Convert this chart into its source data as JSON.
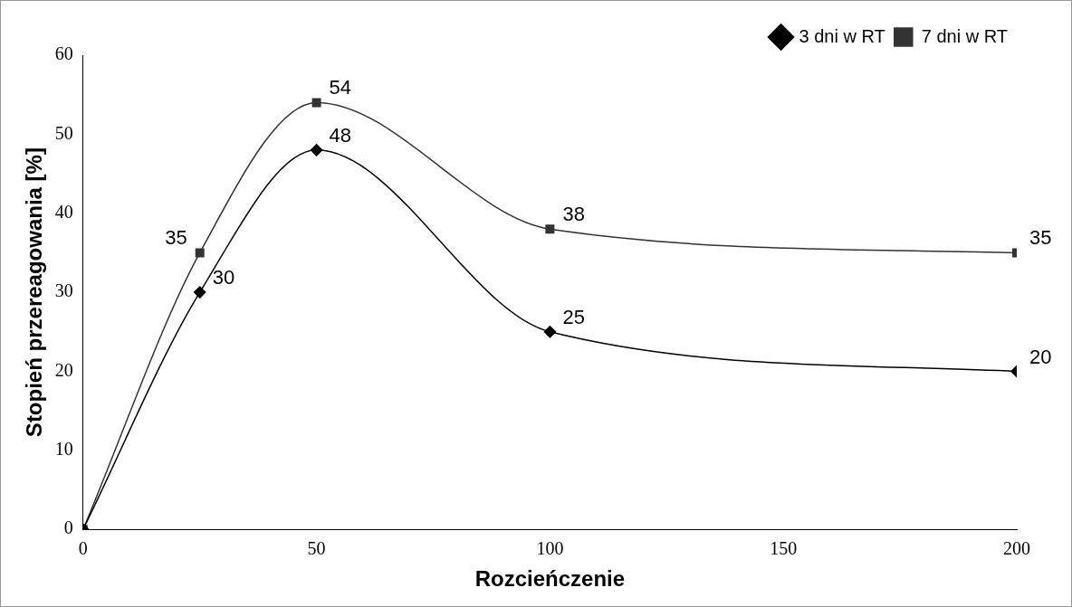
{
  "chart_data": {
    "type": "line",
    "xlabel": "Rozcieńczenie",
    "ylabel": "Stopień przereagowania [%]",
    "x": [
      0,
      25,
      50,
      100,
      200
    ],
    "series": [
      {
        "name": "3 dni w RT",
        "color": "#000000",
        "marker": "diamond",
        "values": [
          0,
          30,
          48,
          25,
          20
        ],
        "value_labels": [
          null,
          "30",
          "48",
          "25",
          "20"
        ]
      },
      {
        "name": "7 dni w RT",
        "color": "#333333",
        "marker": "square",
        "values": [
          0,
          35,
          54,
          38,
          35
        ],
        "value_labels": [
          null,
          "35",
          "54",
          "38",
          "35"
        ]
      }
    ],
    "xlim": [
      0,
      200
    ],
    "xticks": [
      0,
      50,
      100,
      150,
      200
    ],
    "ylim": [
      0,
      60
    ],
    "yticks": [
      0,
      10,
      20,
      30,
      40,
      50,
      60
    ],
    "grid": false,
    "legend": "top right"
  }
}
